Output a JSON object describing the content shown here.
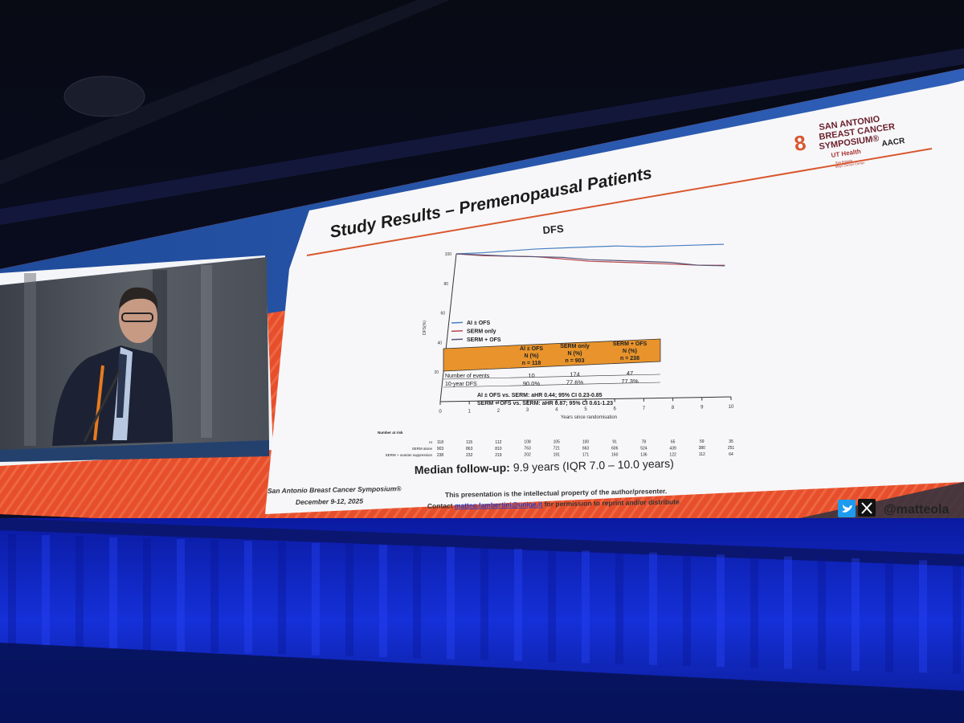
{
  "slide": {
    "title": "Study Results – Premenopausal Patients",
    "logo_line1": "SAN ANTONIO",
    "logo_line2": "BREAST CANCER",
    "logo_line3": "SYMPOSIUM®",
    "logo_ut": "UT Health",
    "logo_ut_sub": "San Antonio",
    "logo_ut_sub2": "Mays Cancer Center",
    "logo_aacr": "AACR",
    "median_label": "Median follow-up:",
    "median_value": "9.9 years (IQR 7.0 – 10.0 years)",
    "footer_left_1": "San Antonio Breast Cancer Symposium®",
    "footer_left_2": "December 9-12, 2025",
    "footer_center_1": "This presentation is the intellectual property of the author/presenter.",
    "footer_center_2a": "Contact ",
    "footer_center_email": "matteo.lambertini@unige.it",
    "footer_center_2b": " for permission to reprint and/or distribute",
    "handle": "@matteola"
  },
  "chart_data": {
    "type": "line",
    "title": "DFS",
    "xlabel": "Years since randomisation",
    "ylabel": "DFS(%)",
    "xlim": [
      0,
      10
    ],
    "ylim": [
      0,
      100
    ],
    "x_ticks": [
      "0",
      "1",
      "2",
      "3",
      "4",
      "5",
      "6",
      "7",
      "8",
      "9",
      "10"
    ],
    "y_ticks": [
      "100",
      "80",
      "60",
      "40",
      "20"
    ],
    "legend_position": "center-left",
    "series": [
      {
        "name": "AI ± OFS",
        "color": "#4a7fc1",
        "x": [
          0,
          1,
          2,
          3,
          4,
          5,
          6,
          7,
          8,
          9,
          10
        ],
        "y": [
          100,
          99,
          98.5,
          98,
          97,
          96,
          95,
          93,
          92,
          91,
          90
        ]
      },
      {
        "name": "SERM only",
        "color": "#b5474f",
        "x": [
          0,
          1,
          2,
          3,
          4,
          5,
          6,
          7,
          8,
          9,
          10
        ],
        "y": [
          100,
          97,
          95,
          93,
          90,
          87,
          85,
          83,
          81,
          79,
          77.6
        ]
      },
      {
        "name": "SERM + OFS",
        "color": "#555577",
        "x": [
          0,
          1,
          2,
          3,
          4,
          5,
          6,
          7,
          8,
          9,
          10
        ],
        "y": [
          100,
          97.5,
          95,
          93,
          91,
          88,
          86,
          84,
          82,
          79,
          77.3
        ]
      }
    ],
    "table": {
      "headers": [
        [
          "AI ± OFS",
          "N (%)",
          "n = 118"
        ],
        [
          "SERM only",
          "N (%)",
          "n = 903"
        ],
        [
          "SERM + OFS",
          "N (%)",
          "n = 238"
        ]
      ],
      "rows": [
        {
          "label": "Number of events",
          "values": [
            "10",
            "174",
            "47"
          ]
        },
        {
          "label": "10-year DFS",
          "values": [
            "90.0%",
            "77.6%",
            "77.3%"
          ]
        }
      ],
      "notes": [
        "AI ± OFS vs. SERM: aHR 0.44; 95% CI 0.23-0.85",
        "SERM + OFS vs. SERM: aHR 0.87; 95% CI 0.61-1.23"
      ]
    },
    "risk_table": {
      "title": "Number at risk",
      "rows": [
        {
          "label": "AI",
          "values": [
            "118",
            "115",
            "112",
            "108",
            "105",
            "100",
            "91",
            "78",
            "65",
            "59",
            "35"
          ]
        },
        {
          "label": "SERM alone",
          "values": [
            "903",
            "863",
            "810",
            "763",
            "721",
            "663",
            "606",
            "524",
            "439",
            "380",
            "251"
          ]
        },
        {
          "label": "SERM + ovarian suppression",
          "values": [
            "238",
            "232",
            "219",
            "202",
            "191",
            "171",
            "160",
            "136",
            "122",
            "112",
            "64"
          ]
        }
      ]
    }
  }
}
